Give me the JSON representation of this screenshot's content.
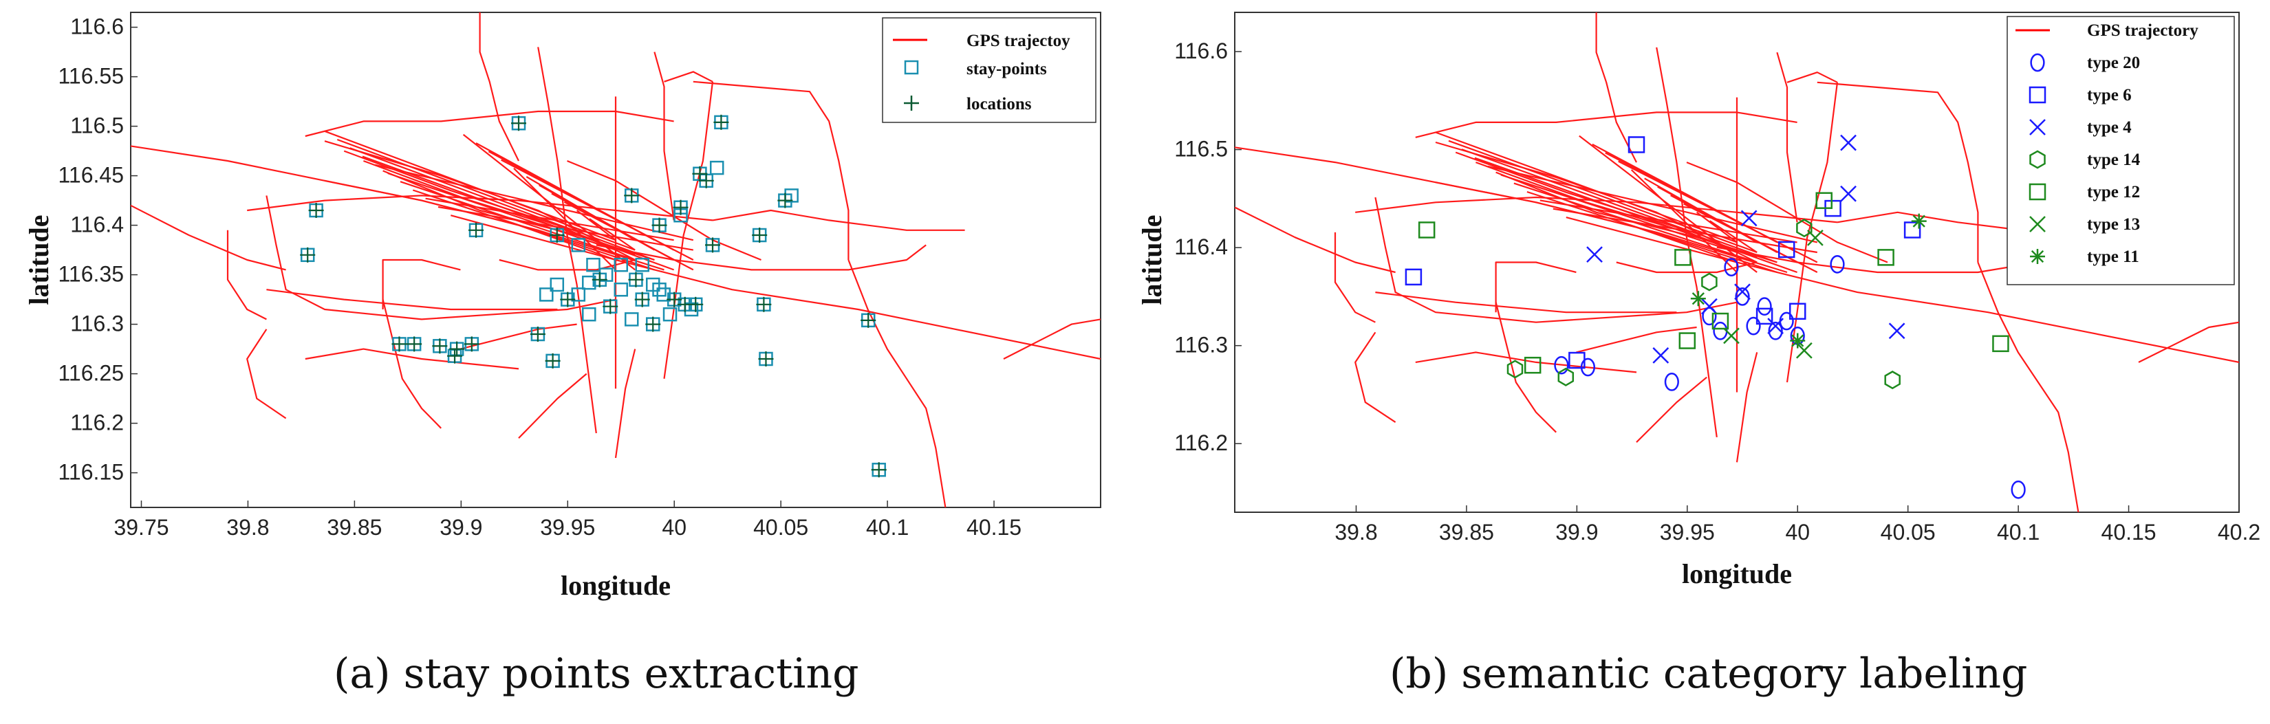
{
  "chart_data": [
    {
      "type": "scatter",
      "panel": "a",
      "caption": "(a)  stay points extracting",
      "xlabel": "longitude",
      "ylabel": "latitude",
      "xlim": [
        39.745,
        40.2
      ],
      "ylim": [
        116.115,
        116.615
      ],
      "xticks": [
        39.75,
        39.8,
        39.85,
        39.9,
        39.95,
        40,
        40.05,
        40.1,
        40.15
      ],
      "xtick_labels": [
        "39.75",
        "39.8",
        "39.85",
        "39.9",
        "39.95",
        "40",
        "40.05",
        "40.1",
        "40.15"
      ],
      "yticks": [
        116.15,
        116.2,
        116.25,
        116.3,
        116.35,
        116.4,
        116.45,
        116.5,
        116.55,
        116.6
      ],
      "ytick_labels": [
        "116.15",
        "116.2",
        "116.25",
        "116.3",
        "116.35",
        "116.4",
        "116.45",
        "116.5",
        "116.55",
        "116.6"
      ],
      "legend_position": "top-right",
      "legend": [
        {
          "label": "GPS trajectoy",
          "marker": "line",
          "color": "#ff0000"
        },
        {
          "label": "stay-points",
          "marker": "square",
          "color": "#1a8fb0"
        },
        {
          "label": "locations",
          "marker": "plus",
          "color": "#0b5a32"
        }
      ],
      "series": [
        {
          "name": "stay-points",
          "points": [
            [
              39.828,
              116.37
            ],
            [
              39.832,
              116.415
            ],
            [
              39.927,
              116.503
            ],
            [
              40.022,
              116.504
            ],
            [
              39.871,
              116.28
            ],
            [
              39.878,
              116.28
            ],
            [
              39.89,
              116.278
            ],
            [
              39.898,
              116.275
            ],
            [
              39.905,
              116.28
            ],
            [
              39.897,
              116.268
            ],
            [
              39.936,
              116.29
            ],
            [
              39.943,
              116.263
            ],
            [
              39.907,
              116.395
            ],
            [
              39.945,
              116.39
            ],
            [
              39.955,
              116.38
            ],
            [
              39.962,
              116.36
            ],
            [
              39.975,
              116.36
            ],
            [
              39.98,
              116.43
            ],
            [
              39.993,
              116.4
            ],
            [
              40.003,
              116.418
            ],
            [
              40.003,
              116.41
            ],
            [
              40.012,
              116.452
            ],
            [
              40.015,
              116.445
            ],
            [
              40.02,
              116.458
            ],
            [
              40.018,
              116.38
            ],
            [
              40.04,
              116.39
            ],
            [
              40.052,
              116.425
            ],
            [
              40.055,
              116.43
            ],
            [
              40.042,
              116.32
            ],
            [
              40.043,
              116.265
            ],
            [
              40.091,
              116.304
            ],
            [
              40.096,
              116.153
            ],
            [
              39.945,
              116.34
            ],
            [
              39.955,
              116.33
            ],
            [
              39.965,
              116.345
            ],
            [
              39.975,
              116.335
            ],
            [
              39.985,
              116.325
            ],
            [
              39.995,
              116.33
            ],
            [
              40.005,
              116.32
            ],
            [
              40.01,
              116.32
            ],
            [
              39.96,
              116.31
            ],
            [
              39.97,
              116.318
            ],
            [
              39.98,
              116.305
            ],
            [
              39.99,
              116.3
            ],
            [
              39.998,
              116.31
            ],
            [
              39.95,
              116.325
            ],
            [
              39.968,
              116.35
            ],
            [
              39.982,
              116.345
            ],
            [
              39.993,
              116.335
            ],
            [
              40.0,
              116.325
            ],
            [
              39.985,
              116.36
            ],
            [
              39.99,
              116.34
            ],
            [
              39.96,
              116.342
            ],
            [
              39.94,
              116.33
            ],
            [
              40.008,
              116.315
            ]
          ]
        },
        {
          "name": "locations",
          "points": [
            [
              39.828,
              116.37
            ],
            [
              39.832,
              116.415
            ],
            [
              39.927,
              116.503
            ],
            [
              40.022,
              116.504
            ],
            [
              39.871,
              116.28
            ],
            [
              39.878,
              116.28
            ],
            [
              39.89,
              116.278
            ],
            [
              39.898,
              116.275
            ],
            [
              39.905,
              116.28
            ],
            [
              39.897,
              116.268
            ],
            [
              39.936,
              116.29
            ],
            [
              39.943,
              116.263
            ],
            [
              39.907,
              116.395
            ],
            [
              39.945,
              116.39
            ],
            [
              39.98,
              116.43
            ],
            [
              39.993,
              116.4
            ],
            [
              40.003,
              116.418
            ],
            [
              40.012,
              116.452
            ],
            [
              40.015,
              116.445
            ],
            [
              40.018,
              116.38
            ],
            [
              40.04,
              116.39
            ],
            [
              40.052,
              116.425
            ],
            [
              40.042,
              116.32
            ],
            [
              40.043,
              116.265
            ],
            [
              40.091,
              116.304
            ],
            [
              40.096,
              116.153
            ],
            [
              39.965,
              116.345
            ],
            [
              39.985,
              116.325
            ],
            [
              40.005,
              116.32
            ],
            [
              39.97,
              116.318
            ],
            [
              39.99,
              116.3
            ],
            [
              39.95,
              116.325
            ],
            [
              39.982,
              116.345
            ],
            [
              40.0,
              116.325
            ],
            [
              40.01,
              116.32
            ]
          ]
        }
      ]
    },
    {
      "type": "scatter",
      "panel": "b",
      "caption": "(b) semantic category labeling",
      "xlabel": "longitude",
      "ylabel": "latitude",
      "xlim": [
        39.745,
        40.2
      ],
      "ylim": [
        116.13,
        116.64
      ],
      "xticks": [
        39.8,
        39.85,
        39.9,
        39.95,
        40,
        40.05,
        40.1,
        40.15,
        40.2
      ],
      "xtick_labels": [
        "39.8",
        "39.85",
        "39.9",
        "39.95",
        "40",
        "40.05",
        "40.1",
        "40.15",
        "40.2"
      ],
      "yticks": [
        116.2,
        116.3,
        116.4,
        116.5,
        116.6
      ],
      "ytick_labels": [
        "116.2",
        "116.3",
        "116.4",
        "116.5",
        "116.6"
      ],
      "legend_position": "top-right",
      "legend": [
        {
          "label": "GPS trajectory",
          "marker": "line",
          "color": "#ff0000"
        },
        {
          "label": "type 20",
          "marker": "circle",
          "color": "#1a1aff"
        },
        {
          "label": "type 6",
          "marker": "square",
          "color": "#1a1aff"
        },
        {
          "label": "type 4",
          "marker": "x",
          "color": "#1a1aff"
        },
        {
          "label": "type 14",
          "marker": "hexagon",
          "color": "#1e8a1e"
        },
        {
          "label": "type 12",
          "marker": "square",
          "color": "#1e8a1e"
        },
        {
          "label": "type 13",
          "marker": "x",
          "color": "#1e8a1e"
        },
        {
          "label": "type 11",
          "marker": "asterisk",
          "color": "#1e8a1e"
        }
      ],
      "series": [
        {
          "name": "type 20",
          "points": [
            [
              39.893,
              116.28
            ],
            [
              39.905,
              116.278
            ],
            [
              39.943,
              116.263
            ],
            [
              39.96,
              116.33
            ],
            [
              39.97,
              116.38
            ],
            [
              39.98,
              116.32
            ],
            [
              39.99,
              116.315
            ],
            [
              40.0,
              116.31
            ],
            [
              40.018,
              116.383
            ],
            [
              40.1,
              116.153
            ],
            [
              39.975,
              116.35
            ],
            [
              39.985,
              116.34
            ],
            [
              39.965,
              116.315
            ],
            [
              39.995,
              116.325
            ]
          ]
        },
        {
          "name": "type 6",
          "points": [
            [
              39.826,
              116.37
            ],
            [
              39.927,
              116.505
            ],
            [
              40.016,
              116.44
            ],
            [
              40.052,
              116.418
            ],
            [
              39.995,
              116.398
            ],
            [
              39.9,
              116.285
            ],
            [
              39.985,
              116.33
            ],
            [
              40.0,
              116.335
            ]
          ]
        },
        {
          "name": "type 4",
          "points": [
            [
              40.023,
              116.507
            ],
            [
              40.023,
              116.455
            ],
            [
              39.978,
              116.43
            ],
            [
              39.908,
              116.393
            ],
            [
              39.938,
              116.29
            ],
            [
              40.045,
              116.315
            ],
            [
              39.975,
              116.355
            ],
            [
              39.99,
              116.32
            ],
            [
              39.96,
              116.34
            ]
          ]
        },
        {
          "name": "type 14",
          "points": [
            [
              39.872,
              116.276
            ],
            [
              39.895,
              116.268
            ],
            [
              40.003,
              116.42
            ],
            [
              40.043,
              116.265
            ],
            [
              39.96,
              116.365
            ]
          ]
        },
        {
          "name": "type 12",
          "points": [
            [
              39.832,
              116.418
            ],
            [
              39.88,
              116.28
            ],
            [
              39.948,
              116.39
            ],
            [
              40.012,
              116.448
            ],
            [
              40.04,
              116.39
            ],
            [
              40.092,
              116.302
            ],
            [
              39.95,
              116.305
            ],
            [
              39.965,
              116.325
            ]
          ]
        },
        {
          "name": "type 13",
          "points": [
            [
              40.003,
              116.295
            ],
            [
              40.008,
              116.41
            ],
            [
              39.97,
              116.31
            ]
          ]
        },
        {
          "name": "type 11",
          "points": [
            [
              40.055,
              116.427
            ],
            [
              40.0,
              116.305
            ],
            [
              39.955,
              116.348
            ]
          ]
        }
      ]
    }
  ]
}
